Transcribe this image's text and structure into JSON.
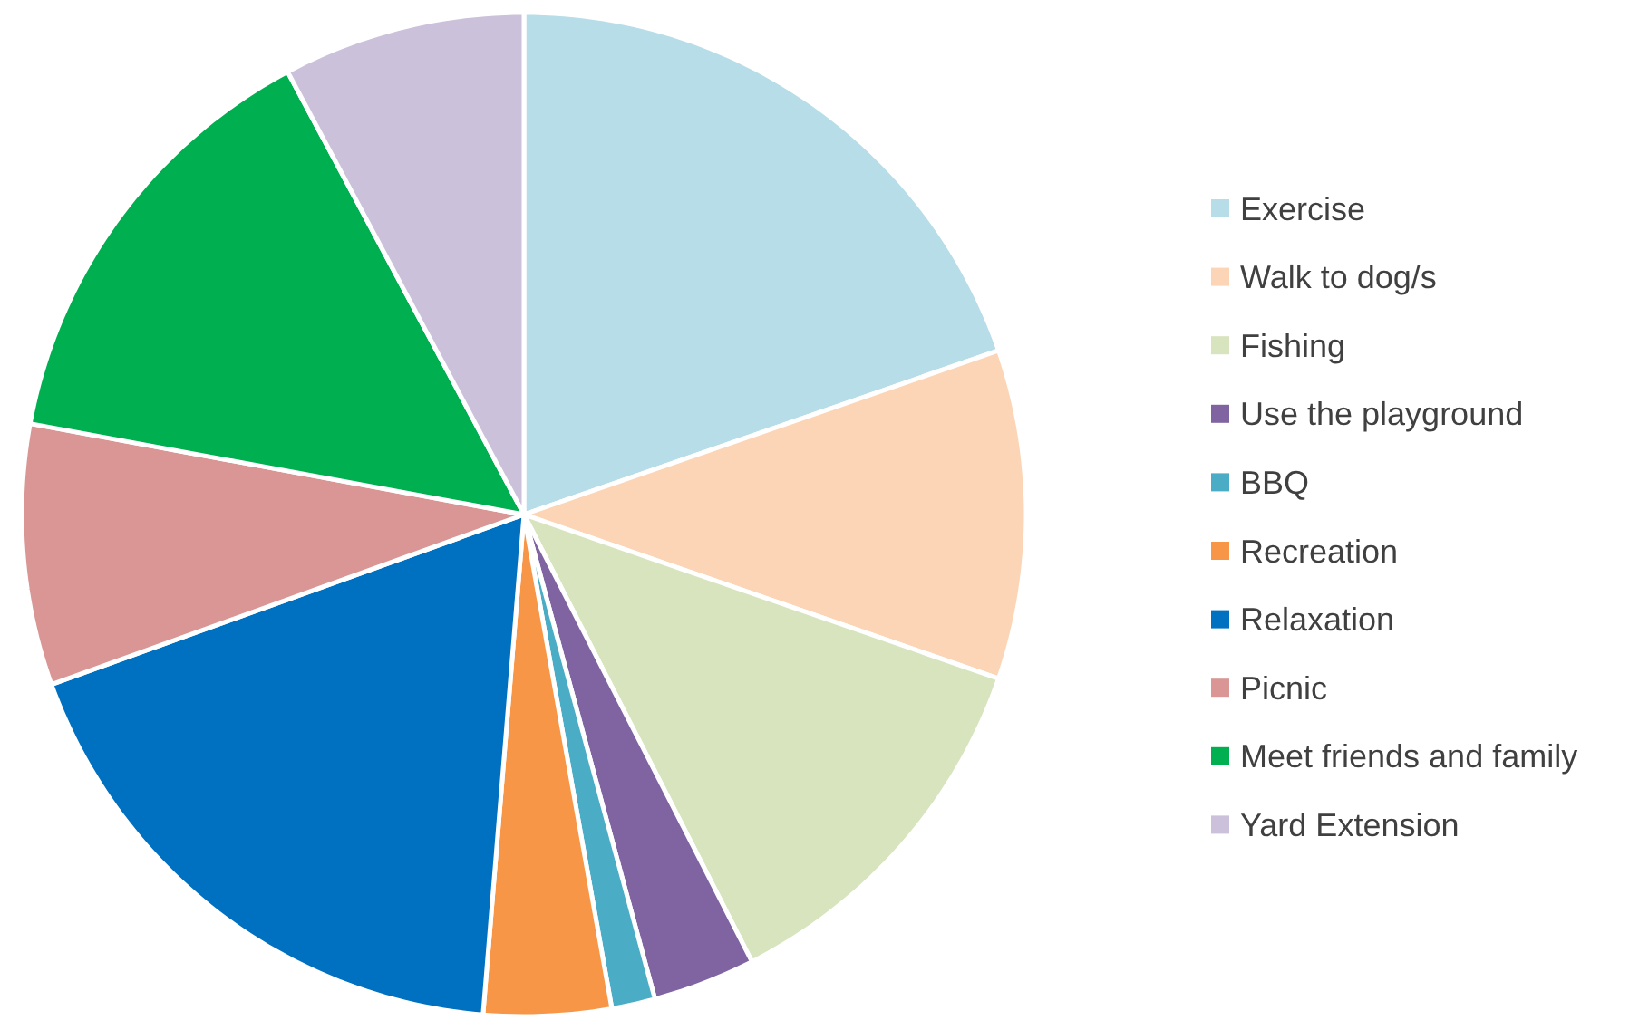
{
  "chart_data": {
    "type": "pie",
    "legend": "right",
    "categories": [
      "Exercise",
      "Walk to dog/s",
      "Fishing",
      "Use the playground",
      "BBQ",
      "Recreation",
      "Relaxation",
      "Picnic",
      "Meet friends and family",
      "Yard Extension"
    ],
    "values": [
      19.7,
      10.6,
      12.2,
      3.3,
      1.4,
      4.1,
      18.2,
      8.4,
      14.3,
      7.8
    ],
    "colors": [
      "#b7dde8",
      "#fbd5b5",
      "#d7e4bd",
      "#8064a2",
      "#4bacc6",
      "#f79646",
      "#0070c0",
      "#d99694",
      "#00b050",
      "#ccc1da"
    ]
  }
}
